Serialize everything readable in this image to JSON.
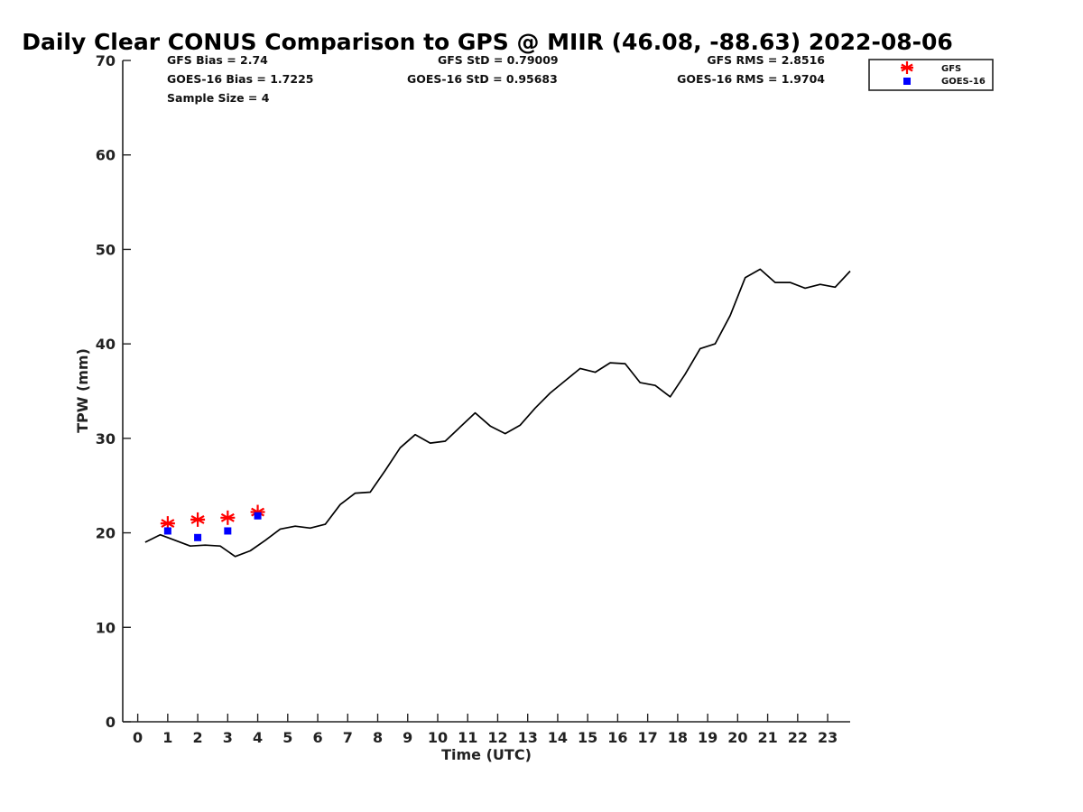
{
  "chart_data": {
    "type": "line",
    "title": "Daily Clear CONUS Comparison to GPS @ MIIR (46.08, -88.63) 2022-08-06",
    "xlabel": "Time (UTC)",
    "ylabel": "TPW (mm)",
    "xlim": [
      -0.5,
      23.75
    ],
    "ylim": [
      0,
      70
    ],
    "x_ticks": [
      0,
      1,
      2,
      3,
      4,
      5,
      6,
      7,
      8,
      9,
      10,
      11,
      12,
      13,
      14,
      15,
      16,
      17,
      18,
      19,
      20,
      21,
      22,
      23
    ],
    "y_ticks": [
      0,
      10,
      20,
      30,
      40,
      50,
      60,
      70
    ],
    "stats": {
      "gfs_bias": "GFS Bias = 2.74",
      "gfs_std": "GFS StD = 0.79009",
      "gfs_rms": "GFS RMS = 2.8516",
      "goes_bias": "GOES-16 Bias = 1.7225",
      "goes_std": "GOES-16 StD = 0.95683",
      "goes_rms": "GOES-16 RMS = 1.9704",
      "sample_size": "Sample Size = 4"
    },
    "legend": [
      {
        "name": "GFS",
        "marker": "asterisk",
        "color": "#ff0000"
      },
      {
        "name": "GOES-16",
        "marker": "square",
        "color": "#0000ff"
      }
    ],
    "series": [
      {
        "name": "GPS",
        "color": "#000000",
        "x": [
          0.25,
          0.75,
          1.25,
          1.75,
          2.25,
          2.75,
          3.25,
          3.75,
          4.25,
          4.75,
          5.25,
          5.75,
          6.25,
          6.75,
          7.25,
          7.75,
          8.25,
          8.75,
          9.25,
          9.75,
          10.25,
          10.75,
          11.25,
          11.75,
          12.25,
          12.75,
          13.25,
          13.75,
          14.25,
          14.75,
          15.25,
          15.75,
          16.25,
          16.75,
          17.25,
          17.75,
          18.25,
          18.75,
          19.25,
          19.75,
          20.25,
          20.75,
          21.25,
          21.75,
          22.25,
          22.75,
          23.25,
          23.75
        ],
        "y": [
          19.0,
          19.8,
          19.2,
          18.6,
          18.7,
          18.6,
          17.5,
          18.1,
          19.2,
          20.4,
          20.7,
          20.5,
          20.9,
          23.0,
          24.2,
          24.3,
          26.6,
          29.0,
          30.4,
          29.5,
          29.7,
          31.2,
          32.7,
          31.3,
          30.5,
          31.4,
          33.2,
          34.8,
          36.1,
          37.4,
          37.0,
          38.0,
          37.9,
          35.9,
          35.6,
          34.4,
          36.8,
          39.5,
          40.0,
          43.0,
          47.0,
          47.9,
          46.5,
          46.5,
          45.9,
          46.3,
          46.0,
          47.7
        ]
      },
      {
        "name": "GFS",
        "color": "#ff0000",
        "marker": "asterisk",
        "x": [
          1,
          2,
          3,
          4
        ],
        "y": [
          21.0,
          21.4,
          21.6,
          22.2
        ]
      },
      {
        "name": "GOES-16",
        "color": "#0000ff",
        "marker": "square",
        "x": [
          1,
          2,
          3,
          4
        ],
        "y": [
          20.2,
          19.5,
          20.2,
          21.8
        ]
      }
    ]
  }
}
